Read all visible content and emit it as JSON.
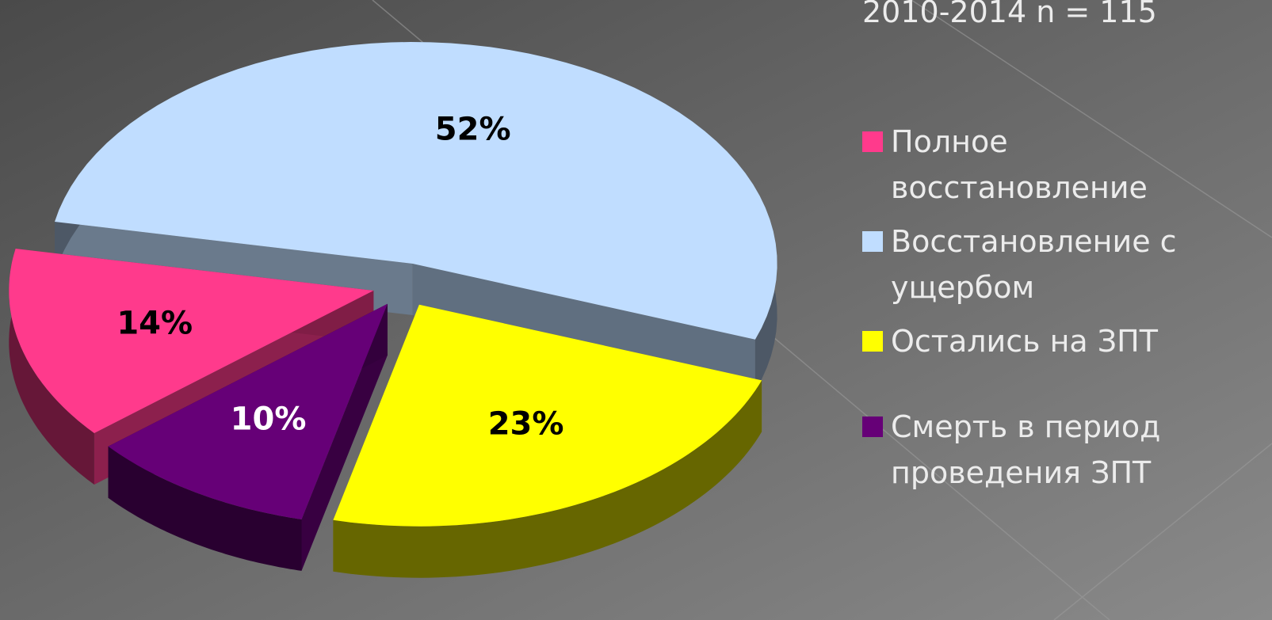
{
  "chart_data": {
    "type": "pie",
    "title": "2010-2014 n = 115",
    "categories": [
      "Полное восстановление",
      "Восстановление с ущербом",
      "Остались на ЗПТ",
      "Смерть в период проведения ЗПТ"
    ],
    "values": [
      14,
      52,
      23,
      10
    ],
    "value_labels": [
      "14%",
      "52%",
      "23%",
      "10%"
    ],
    "colors": [
      "#ff3a8c",
      "#c0ddff",
      "#ffff00",
      "#660077"
    ],
    "legend": "right"
  }
}
